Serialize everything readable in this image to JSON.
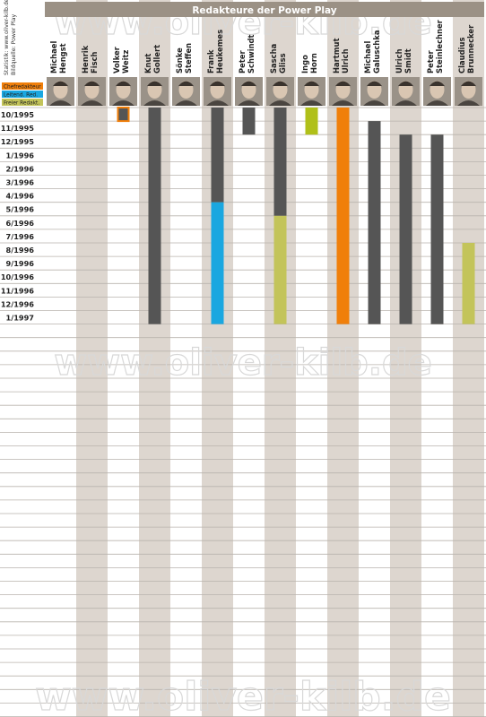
{
  "chart_data": {
    "type": "gantt",
    "title": "Redakteure der Power Play",
    "watermark": "www.oliver-kilb.de",
    "side_note": [
      "Statistik: www.oliver-kilb.de",
      "Bildquelle: Power Play"
    ],
    "legend": [
      {
        "label": "Chefredakteur",
        "color": "#f07f0a"
      },
      {
        "label": "Leitend. Red.",
        "color": "#1aa7e0"
      },
      {
        "label": "Freier Redakt.",
        "color": "#c3c45a"
      }
    ],
    "series_color_default": "#555555",
    "months": [
      "10/1995",
      "11/1995",
      "12/1995",
      "1/1996",
      "2/1996",
      "3/1996",
      "4/1996",
      "5/1996",
      "6/1996",
      "7/1996",
      "8/1996",
      "9/1996",
      "10/1996",
      "11/1996",
      "12/1996",
      "1/1997"
    ],
    "people": [
      {
        "name": [
          "Michael",
          "Hengst"
        ],
        "segments": []
      },
      {
        "name": [
          "Henrik",
          "Fisch"
        ],
        "segments": []
      },
      {
        "name": [
          "Volker",
          "Weitz"
        ],
        "segments": [
          {
            "start": "10/1995",
            "end": "10/1995",
            "color": "#555555",
            "outline": "#f07f0a"
          }
        ]
      },
      {
        "name": [
          "Knut",
          "Gollert"
        ],
        "segments": [
          {
            "start": "10/1995",
            "end": "1/1997",
            "color": "#555555"
          }
        ]
      },
      {
        "name": [
          "Sönke",
          "Steffen"
        ],
        "segments": []
      },
      {
        "name": [
          "Frank",
          "Heukemes"
        ],
        "segments": [
          {
            "start": "10/1995",
            "end": "4/1996",
            "color": "#555555"
          },
          {
            "start": "5/1996",
            "end": "1/1997",
            "color": "#1aa7e0"
          }
        ]
      },
      {
        "name": [
          "Peter",
          "Schwindt"
        ],
        "segments": [
          {
            "start": "10/1995",
            "end": "11/1995",
            "color": "#555555"
          }
        ]
      },
      {
        "name": [
          "Sascha",
          "Gliss"
        ],
        "segments": [
          {
            "start": "10/1995",
            "end": "5/1996",
            "color": "#555555"
          },
          {
            "start": "6/1996",
            "end": "1/1997",
            "color": "#c3c45a"
          }
        ]
      },
      {
        "name": [
          "Ingo",
          "Horn"
        ],
        "segments": [
          {
            "start": "10/1995",
            "end": "11/1995",
            "color": "#b0c019"
          }
        ]
      },
      {
        "name": [
          "Hartmut",
          "Ulrich"
        ],
        "segments": [
          {
            "start": "10/1995",
            "end": "1/1997",
            "color": "#f07f0a"
          }
        ]
      },
      {
        "name": [
          "Michael",
          "Galuschka"
        ],
        "segments": [
          {
            "start": "11/1995",
            "end": "1/1997",
            "color": "#555555"
          }
        ]
      },
      {
        "name": [
          "Ulrich",
          "Smidt"
        ],
        "segments": [
          {
            "start": "12/1995",
            "end": "1/1997",
            "color": "#555555"
          }
        ]
      },
      {
        "name": [
          "Peter",
          "Steinlechner"
        ],
        "segments": [
          {
            "start": "12/1995",
            "end": "1/1997",
            "color": "#555555"
          }
        ]
      },
      {
        "name": [
          "Claudius",
          "Brunnecker"
        ],
        "segments": [
          {
            "start": "8/1996",
            "end": "1/1997",
            "color": "#c3c45a"
          }
        ]
      }
    ]
  }
}
